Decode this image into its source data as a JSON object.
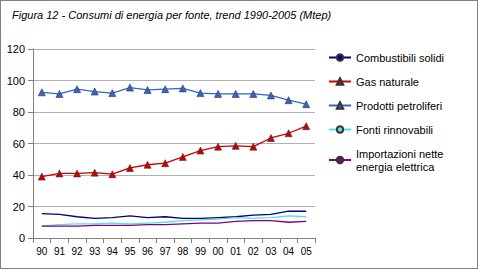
{
  "chart_data": {
    "type": "line",
    "title": "Figura 12 - Consumi di energia per fonte, trend 1990-2005 (Mtep)",
    "categories": [
      "90",
      "91",
      "92",
      "93",
      "94",
      "95",
      "96",
      "97",
      "98",
      "99",
      "00",
      "01",
      "02",
      "03",
      "04",
      "05"
    ],
    "series": [
      {
        "name": "Combustibili solidi",
        "color": "#000080",
        "marker": "none",
        "line_style": "solid",
        "values": [
          15.5,
          15,
          13.5,
          12.5,
          13,
          14,
          13,
          13.5,
          12.5,
          12.5,
          13,
          13.5,
          14.5,
          15,
          17,
          17
        ]
      },
      {
        "name": "Gas naturale",
        "color": "#cc0000",
        "marker": "triangle",
        "line_style": "solid",
        "values": [
          39,
          41,
          41,
          41.5,
          40.5,
          44.5,
          46.5,
          47.5,
          51.5,
          55.5,
          58,
          58.5,
          58,
          63.5,
          66.5,
          71
        ]
      },
      {
        "name": "Prodotti petroliferi",
        "color": "#3366cc",
        "marker": "triangle",
        "line_style": "solid",
        "values": [
          92.5,
          91.5,
          94.5,
          93,
          92,
          95.5,
          94,
          94.5,
          95,
          92,
          91.5,
          91.5,
          91.5,
          90.5,
          87.5,
          85
        ]
      },
      {
        "name": "Fonti rinnovabili",
        "color": "#55e0e8",
        "marker": "none",
        "line_style": "solid",
        "values": [
          7.5,
          8.5,
          9,
          9,
          9.5,
          9,
          9.5,
          10,
          11,
          11.5,
          12,
          13,
          12.5,
          13,
          14,
          13.5
        ]
      },
      {
        "name": "Importazioni nette energia elettrica",
        "color": "#800080",
        "marker": "none",
        "line_style": "solid",
        "values": [
          7.5,
          7.5,
          7.5,
          8,
          8,
          8,
          8.5,
          8.5,
          9,
          9.5,
          9.5,
          10.5,
          11,
          11,
          10,
          10.5
        ]
      }
    ],
    "ylim": [
      0,
      120
    ],
    "yticks": [
      0,
      20,
      40,
      60,
      80,
      100,
      120
    ],
    "grid": true,
    "legend": "right"
  }
}
